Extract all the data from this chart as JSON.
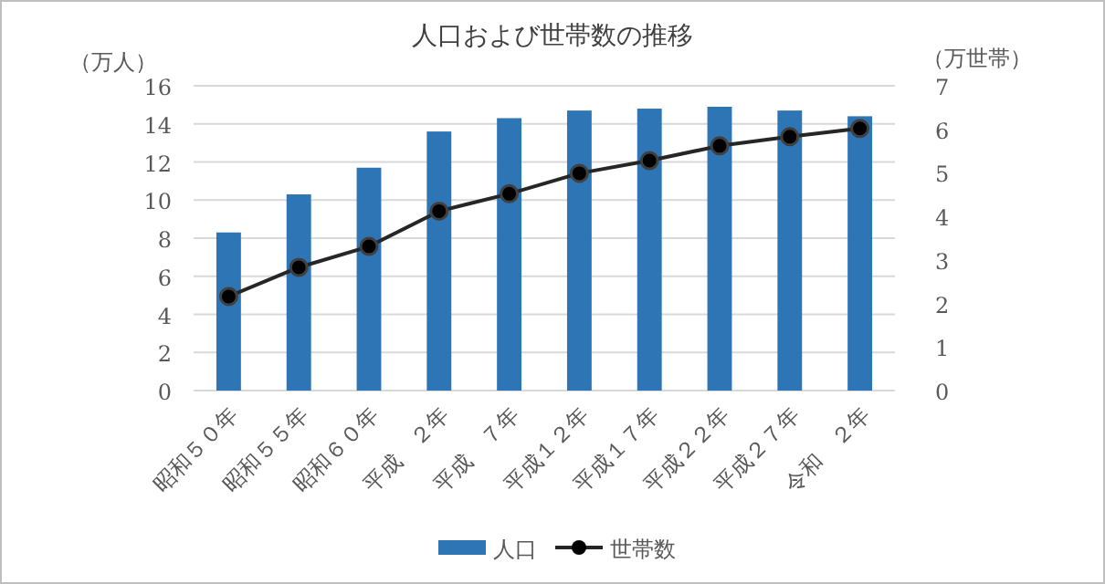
{
  "chart_data": {
    "type": "bar",
    "title": "人口および世帯数の推移",
    "ylabel": "（万人）",
    "y2label": "（万世帯）",
    "categories": [
      "昭和５０年",
      "昭和５５年",
      "昭和６０年",
      "平成　２年",
      "平成　７年",
      "平成１２年",
      "平成１７年",
      "平成２２年",
      "平成２７年",
      "令和　２年"
    ],
    "series": [
      {
        "name": "人口",
        "color": "#2e75b6",
        "values": [
          8.3,
          10.3,
          11.7,
          13.6,
          14.3,
          14.7,
          14.8,
          14.9,
          14.7,
          14.4
        ]
      },
      {
        "name": "世帯数",
        "type": "line",
        "axis": "y2",
        "color": "#262626",
        "marker": "circle",
        "values": [
          2.16,
          2.83,
          3.31,
          4.12,
          4.52,
          4.99,
          5.28,
          5.62,
          5.83,
          6.02
        ]
      }
    ],
    "ylim": [
      0,
      16
    ],
    "yticks": [
      0,
      2,
      4,
      6,
      8,
      10,
      12,
      14,
      16
    ],
    "y2lim": [
      0,
      7
    ],
    "y2ticks": [
      0,
      1,
      2,
      3,
      4,
      5,
      6,
      7
    ],
    "grid": "y",
    "legend": "bottom"
  }
}
